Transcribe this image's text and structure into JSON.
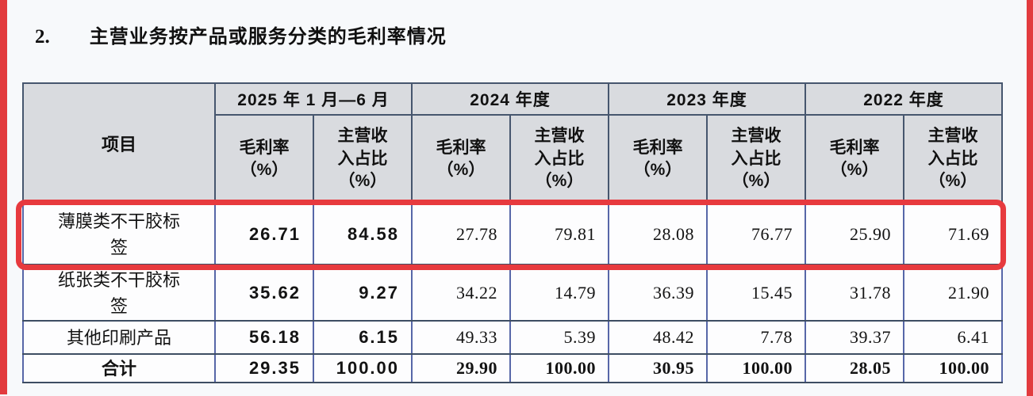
{
  "page": {
    "section_number": "2.",
    "title": "主营业务按产品或服务分类的毛利率情况"
  },
  "colors": {
    "annotation_red": "#e23b3e",
    "header_bg": "#d9dbdf",
    "border_dark": "#3d4d62",
    "border_blue": "#5767a8"
  },
  "table": {
    "item_header": "项目",
    "periods": [
      "2025 年 1 月—6 月",
      "2024 年度",
      "2023 年度",
      "2022 年度"
    ],
    "sub_headers": {
      "margin": "毛利率\n（%）",
      "share": "主营收\n入占比\n（%）"
    },
    "rows": [
      {
        "label": "薄膜类不干胶标\n签",
        "highlighted": true,
        "values": [
          "26.71",
          "84.58",
          "27.78",
          "79.81",
          "28.08",
          "76.77",
          "25.90",
          "71.69"
        ]
      },
      {
        "label": "纸张类不干胶标\n签",
        "highlighted": false,
        "values": [
          "35.62",
          "9.27",
          "34.22",
          "14.79",
          "36.39",
          "15.45",
          "31.78",
          "21.90"
        ]
      },
      {
        "label": "其他印刷产品",
        "highlighted": false,
        "values": [
          "56.18",
          "6.15",
          "49.33",
          "5.39",
          "48.42",
          "7.78",
          "39.37",
          "6.41"
        ]
      },
      {
        "label": "合计",
        "highlighted": false,
        "is_total": true,
        "values": [
          "29.35",
          "100.00",
          "29.90",
          "100.00",
          "30.95",
          "100.00",
          "28.05",
          "100.00"
        ]
      }
    ]
  }
}
